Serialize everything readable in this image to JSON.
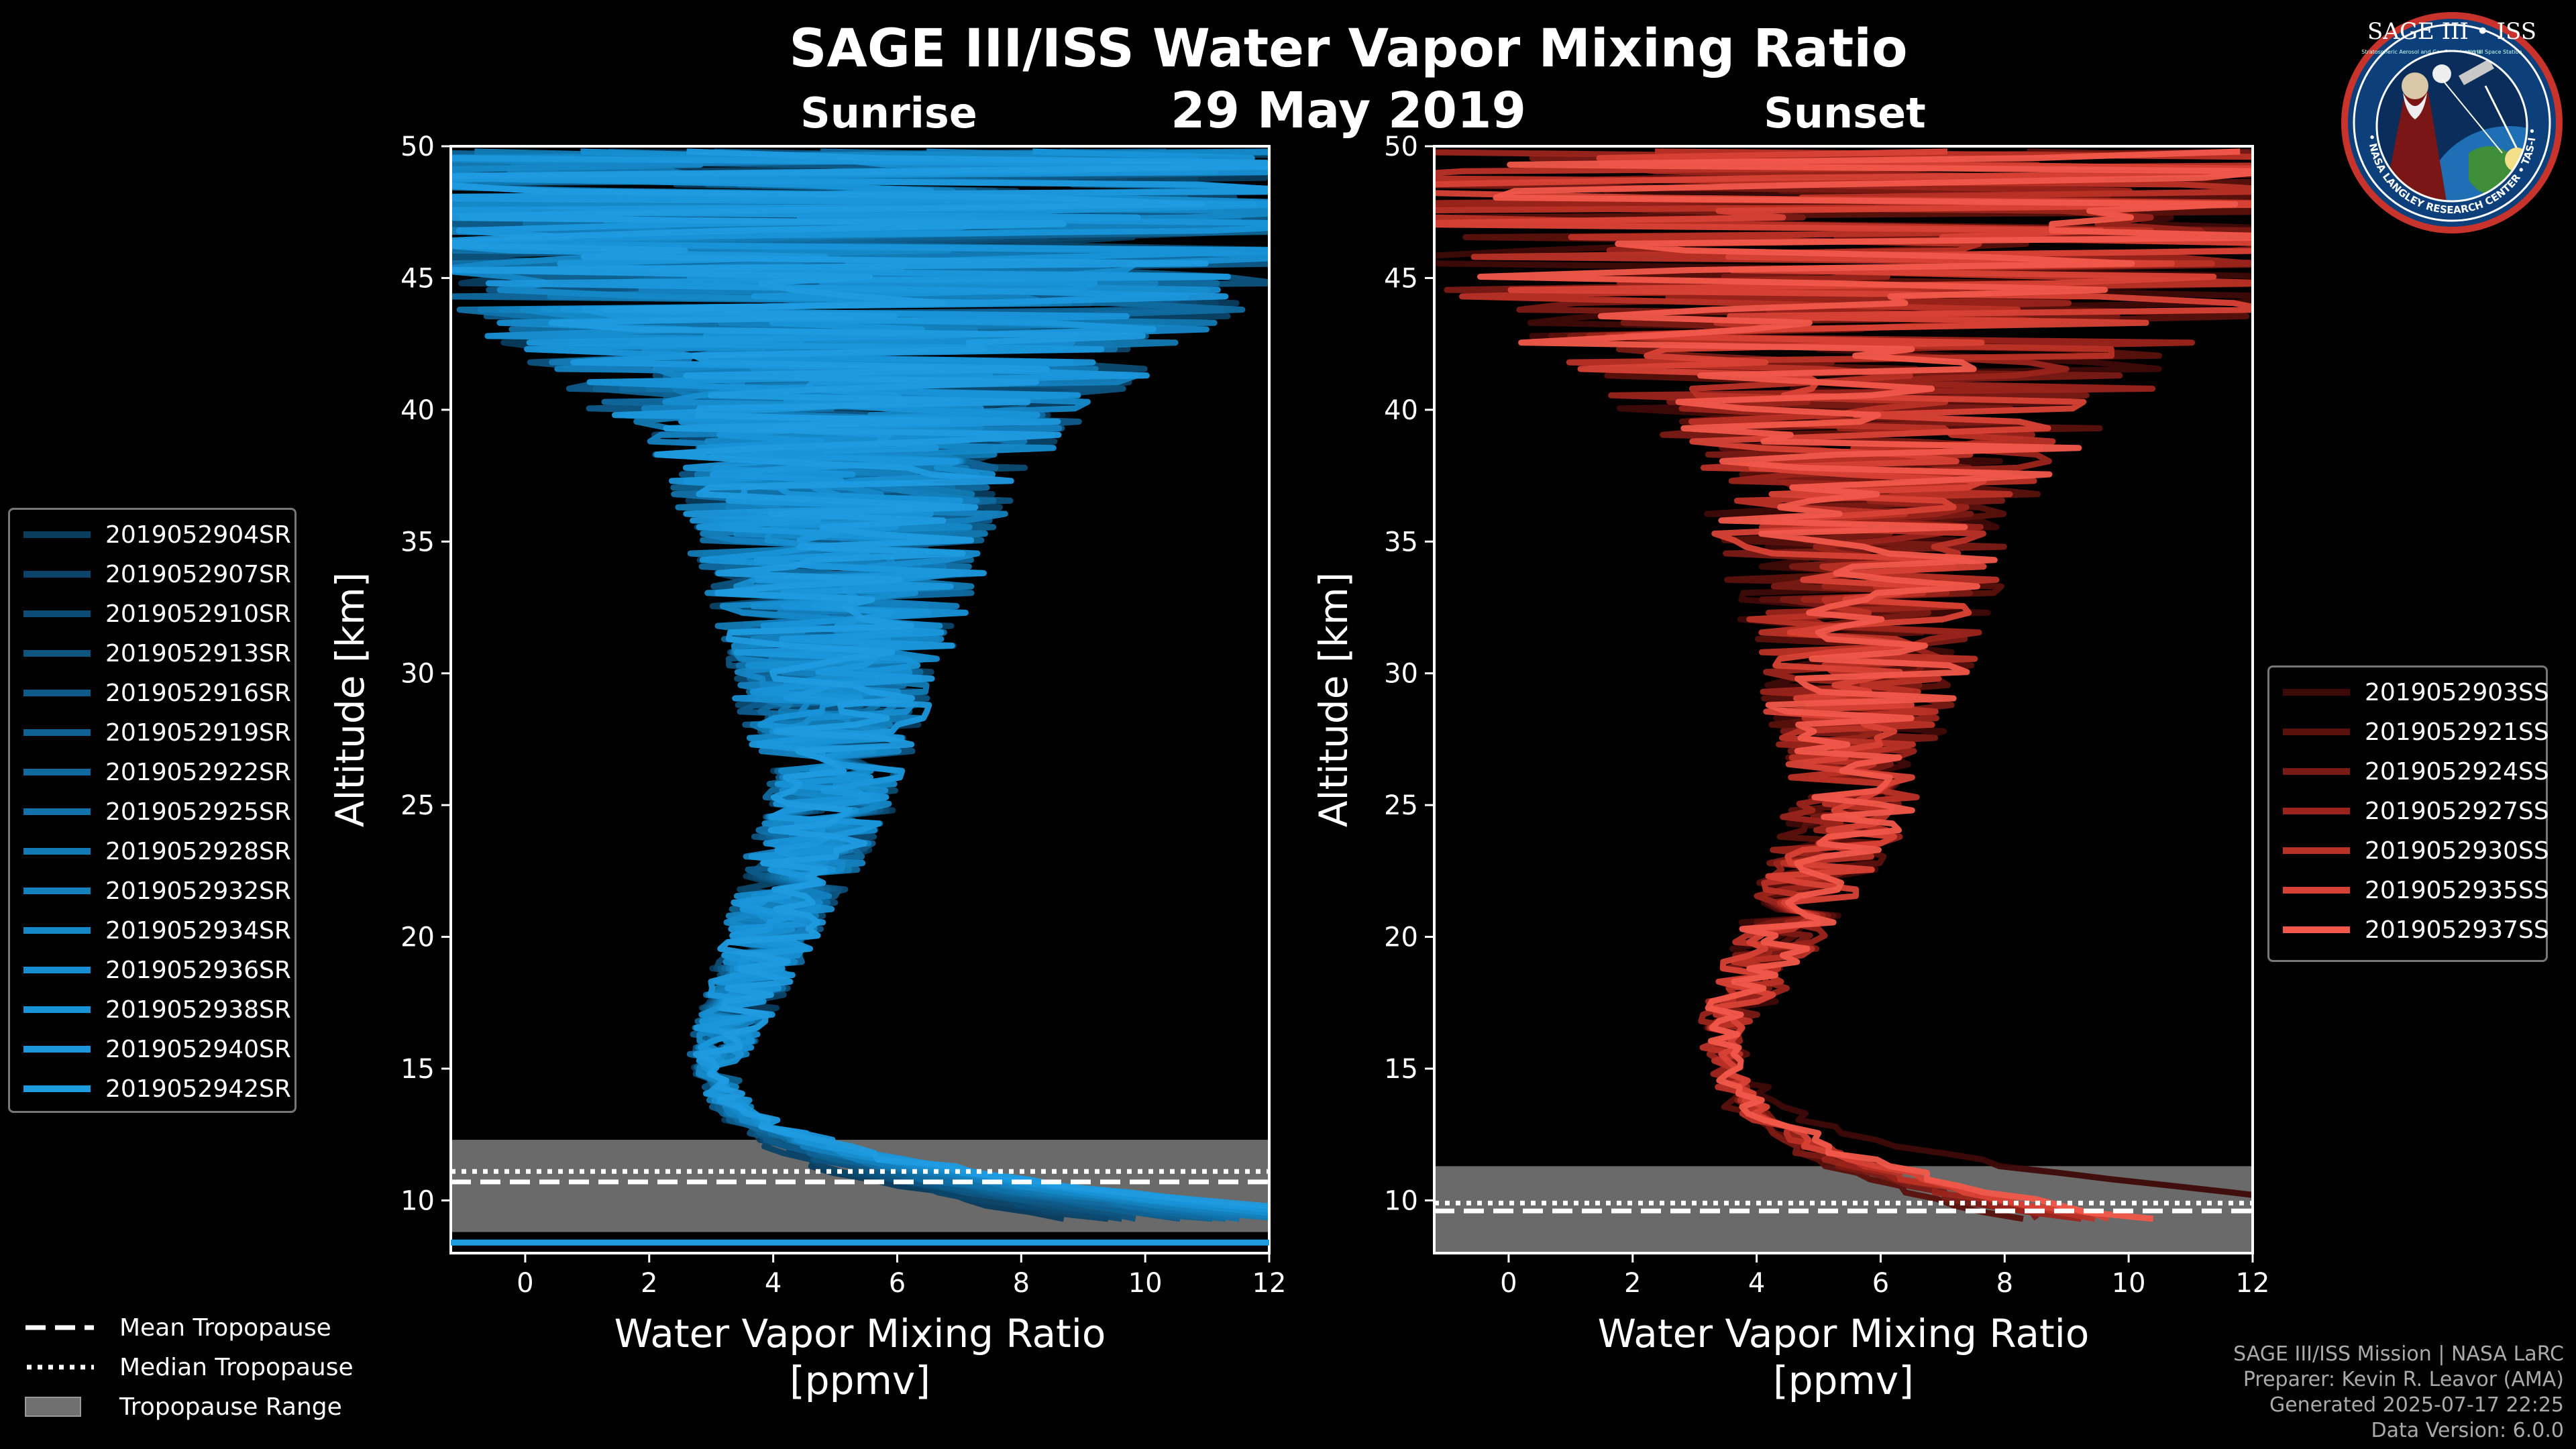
{
  "title": "SAGE III/ISS Water Vapor Mixing Ratio",
  "date": "29 May 2019",
  "logo_text": "SAGE III • ISS",
  "logo_ring_text": "BALL • NASA LANGLEY RESEARCH CENTER • TAS-I • ESA",
  "logo_subtext_1": "Stratospheric Aerosol and Gas Experiment III",
  "logo_subtext_2": "International Space Station",
  "credits": {
    "line1": "SAGE III/ISS Mission | NASA LaRC",
    "line2": "Preparer: Kevin R. Leavor (AMA)",
    "line3": "Generated 2025-07-17 22:25",
    "line4": "Data Version: 6.0.0"
  },
  "tropopause_legend": [
    {
      "label": "Mean Tropopause",
      "style": "dashed"
    },
    {
      "label": "Median Tropopause",
      "style": "dotted"
    },
    {
      "label": "Tropopause Range",
      "style": "patch"
    }
  ],
  "colors": {
    "sunrise_base": "#1f9be0",
    "sunset_base": "#f2584a",
    "tropopause_patch": "#707070"
  },
  "chart_data": [
    {
      "type": "line",
      "title": "Sunrise",
      "xlabel_line1": "Water Vapor Mixing Ratio",
      "xlabel_line2": "[ppmv]",
      "ylabel": "Altitude [km]",
      "xlim": [
        -1.2,
        12
      ],
      "ylim": [
        8,
        50
      ],
      "xticks": [
        0,
        2,
        4,
        6,
        8,
        10,
        12
      ],
      "yticks": [
        10,
        15,
        20,
        25,
        30,
        35,
        40,
        45,
        50
      ],
      "tropopause": {
        "mean": 10.7,
        "median": 11.1,
        "range": [
          8.8,
          12.3
        ]
      },
      "profile_shape": {
        "stratosphere_ppmv": 4.9,
        "hygropause_ppmv": 3.1,
        "hygropause_km": 15.5
      },
      "series": [
        {
          "name": "2019052904SR",
          "color": "#0a3c5e"
        },
        {
          "name": "2019052907SR",
          "color": "#0b4468"
        },
        {
          "name": "2019052910SR",
          "color": "#0c4c74"
        },
        {
          "name": "2019052913SR",
          "color": "#0d547f"
        },
        {
          "name": "2019052916SR",
          "color": "#0e5b8a"
        },
        {
          "name": "2019052919SR",
          "color": "#0f6394"
        },
        {
          "name": "2019052922SR",
          "color": "#106a9f"
        },
        {
          "name": "2019052925SR",
          "color": "#1172aa"
        },
        {
          "name": "2019052928SR",
          "color": "#127ab4"
        },
        {
          "name": "2019052932SR",
          "color": "#1481bf"
        },
        {
          "name": "2019052934SR",
          "color": "#1588c8"
        },
        {
          "name": "2019052936SR",
          "color": "#178ed1"
        },
        {
          "name": "2019052938SR",
          "color": "#1993d8"
        },
        {
          "name": "2019052940SR",
          "color": "#1b97dc"
        },
        {
          "name": "2019052942SR",
          "color": "#1f9be0"
        }
      ]
    },
    {
      "type": "line",
      "title": "Sunset",
      "xlabel_line1": "Water Vapor Mixing Ratio",
      "xlabel_line2": "[ppmv]",
      "ylabel": "Altitude [km]",
      "xlim": [
        -1.2,
        12
      ],
      "ylim": [
        8,
        50
      ],
      "xticks": [
        0,
        2,
        4,
        6,
        8,
        10,
        12
      ],
      "yticks": [
        10,
        15,
        20,
        25,
        30,
        35,
        40,
        45,
        50
      ],
      "tropopause": {
        "mean": 9.6,
        "median": 9.9,
        "range": [
          8.0,
          11.3
        ]
      },
      "profile_shape": {
        "stratosphere_ppmv": 5.6,
        "hygropause_ppmv": 3.5,
        "hygropause_km": 16.5
      },
      "series": [
        {
          "name": "2019052903SS",
          "color": "#3d0a08"
        },
        {
          "name": "2019052921SS",
          "color": "#5a110d"
        },
        {
          "name": "2019052924SS",
          "color": "#7a1a14"
        },
        {
          "name": "2019052927SS",
          "color": "#9a241b"
        },
        {
          "name": "2019052930SS",
          "color": "#ba3126"
        },
        {
          "name": "2019052935SS",
          "color": "#d84235"
        },
        {
          "name": "2019052937SS",
          "color": "#f2584a"
        }
      ]
    }
  ]
}
